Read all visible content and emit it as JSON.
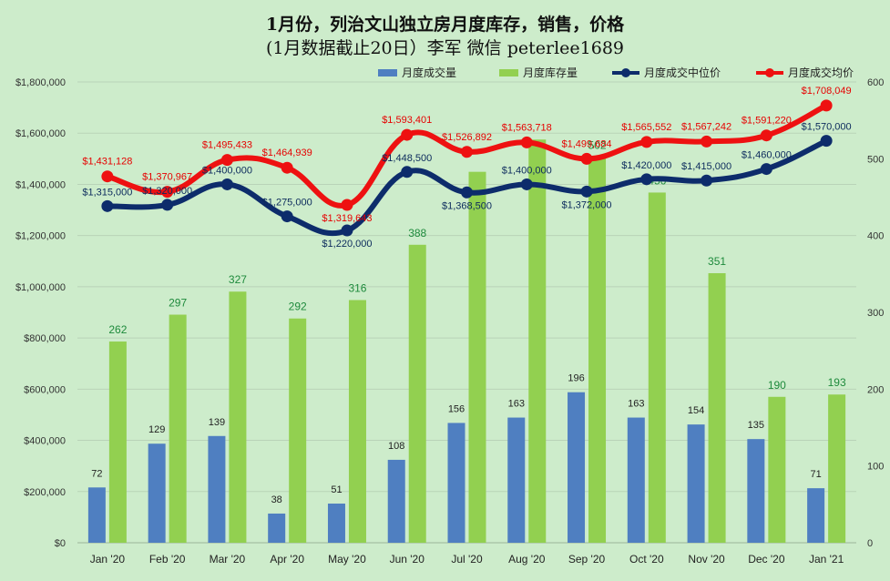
{
  "title_line1": "1月份，列治文山独立房月度库存，销售，价格",
  "title_line2": "(1月数据截止20日）李军 微信 peterlee1689",
  "chart_data": {
    "type": "bar+line",
    "categories": [
      "Jan '20",
      "Feb '20",
      "Mar '20",
      "Apr '20",
      "May '20",
      "Jun '20",
      "Jul '20",
      "Aug '20",
      "Sep '20",
      "Oct '20",
      "Nov '20",
      "Dec '20",
      "Jan '21"
    ],
    "left_axis": {
      "ylim": [
        0,
        1800000
      ],
      "ticks": [
        "$0",
        "$200,000",
        "$400,000",
        "$600,000",
        "$800,000",
        "$1,000,000",
        "$1,200,000",
        "$1,400,000",
        "$1,600,000",
        "$1,800,000"
      ],
      "tick_values": [
        0,
        200000,
        400000,
        600000,
        800000,
        1000000,
        1200000,
        1400000,
        1600000,
        1800000
      ]
    },
    "right_axis": {
      "ylim": [
        0,
        600
      ],
      "ticks": [
        "0",
        "100",
        "200",
        "300",
        "400",
        "500",
        "600"
      ],
      "tick_values": [
        0,
        100,
        200,
        300,
        400,
        500,
        600
      ]
    },
    "series": [
      {
        "name": "月度成交量",
        "type": "bar",
        "axis": "right",
        "color": "#4f7fc1",
        "values": [
          72,
          129,
          139,
          38,
          51,
          108,
          156,
          163,
          196,
          163,
          154,
          135,
          71
        ],
        "labels": [
          "72",
          "129",
          "139",
          "38",
          "51",
          "108",
          "156",
          "163",
          "196",
          "163",
          "154",
          "135",
          "71"
        ]
      },
      {
        "name": "月度库存量",
        "type": "bar",
        "axis": "right",
        "color": "#92d050",
        "values": [
          262,
          297,
          327,
          292,
          316,
          388,
          483,
          525,
          502,
          456,
          351,
          190,
          193
        ],
        "labels": [
          "262",
          "297",
          "327",
          "292",
          "316",
          "388",
          "",
          "",
          "502",
          "456",
          "351",
          "190",
          "193"
        ]
      },
      {
        "name": "月度成交中位价",
        "type": "line",
        "axis": "left",
        "color": "#0d2c6b",
        "values": [
          1315000,
          1320000,
          1400000,
          1275000,
          1220000,
          1448500,
          1368500,
          1400000,
          1372000,
          1420000,
          1415000,
          1460000,
          1570000
        ],
        "labels": [
          "$1,315,000",
          "$1,320,000",
          "$1,400,000",
          "$1,275,000",
          "$1,220,000",
          "$1,448,500",
          "$1,368,500",
          "$1,400,000",
          "$1,372,000",
          "$1,420,000",
          "$1,415,000",
          "$1,460,000",
          "$1,570,000"
        ]
      },
      {
        "name": "月度成交均价",
        "type": "line",
        "axis": "left",
        "color": "#ee1111",
        "values": [
          1431128,
          1370967,
          1495433,
          1464939,
          1319643,
          1593401,
          1526892,
          1563718,
          1499684,
          1565552,
          1567242,
          1591220,
          1708049
        ],
        "labels": [
          "$1,431,128",
          "$1,370,967",
          "$1,495,433",
          "$1,464,939",
          "$1,319,643",
          "$1,593,401",
          "$1,526,892",
          "$1,563,718",
          "$1,499,684",
          "$1,565,552",
          "$1,567,242",
          "$1,591,220",
          "$1,708,049"
        ]
      }
    ],
    "legend_position": "top"
  }
}
